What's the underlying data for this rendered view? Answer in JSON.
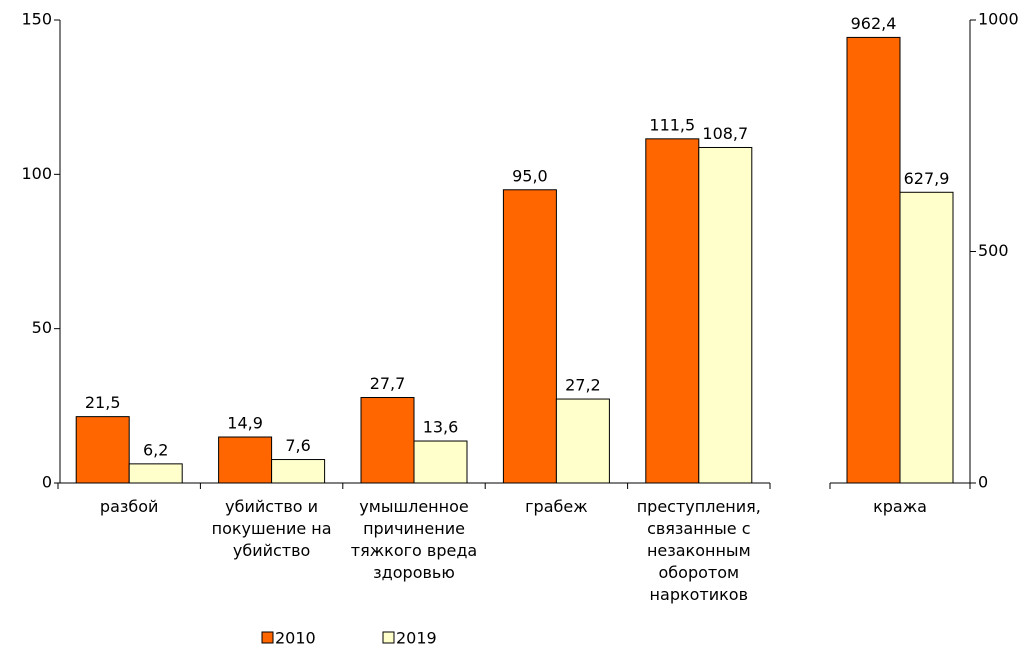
{
  "chart_data": [
    {
      "type": "bar",
      "categories": [
        "разбой",
        "убийство и покушение на убийство",
        "умышленное причинение тяжкого вреда здоровью",
        "грабеж",
        "преступления, связанные с незаконным оборотом наркотиков"
      ],
      "series": [
        {
          "name": "2010",
          "color": "#ff6600",
          "values": [
            21.5,
            14.9,
            27.7,
            95.0,
            111.5
          ],
          "value_labels": [
            "21,5",
            "14,9",
            "27,7",
            "95,0",
            "111,5"
          ]
        },
        {
          "name": "2019",
          "color": "#ffffcc",
          "values": [
            6.2,
            7.6,
            13.6,
            27.2,
            108.7
          ],
          "value_labels": [
            "6,2",
            "7,6",
            "13,6",
            "27,2",
            "108,7"
          ]
        }
      ],
      "ylim": [
        0,
        150
      ],
      "yticks": [
        0,
        50,
        100,
        150
      ]
    },
    {
      "type": "bar",
      "categories": [
        "кража"
      ],
      "series": [
        {
          "color": "#ff6600",
          "axis": "y2",
          "values": [
            962.4
          ],
          "value_labels": [
            "962,4"
          ]
        },
        {
          "color": "#ffffcc",
          "axis": "y2",
          "values": [
            627.9
          ],
          "value_labels": [
            "627,9"
          ]
        }
      ],
      "y2lim": [
        0,
        1000
      ],
      "y2ticks": [
        0,
        500,
        1000
      ]
    }
  ]
}
